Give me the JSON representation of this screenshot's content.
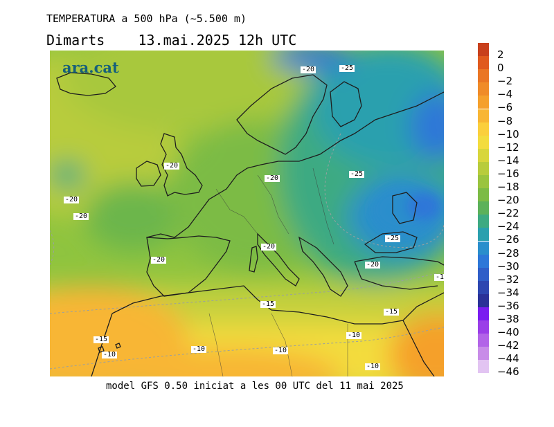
{
  "title": "TEMPERATURA a 500 hPa (~5.500 m)",
  "subtitle_day": "Dimarts",
  "subtitle_datetime": "13.mai.2025 12h UTC",
  "footer": "model GFS 0.50 iniciat a les 00 UTC del 11 mai 2025",
  "logo": "ara.cat",
  "contour_labels": [
    "-20",
    "-25",
    "-20",
    "-20",
    "-20",
    "-20",
    "-25",
    "-20",
    "-25",
    "-20",
    "-20",
    "-15",
    "-15",
    "-1",
    "-15",
    "-10",
    "-10",
    "-10",
    "-10",
    "-10"
  ],
  "legend": {
    "labels": [
      "2",
      "0",
      "−2",
      "−4",
      "−6",
      "−8",
      "−10",
      "−12",
      "−14",
      "−16",
      "−18",
      "−20",
      "−22",
      "−24",
      "−26",
      "−28",
      "−30",
      "−32",
      "−34",
      "−36",
      "−38",
      "−40",
      "−42",
      "−44",
      "−46"
    ],
    "colors": [
      "#c8401c",
      "#e05a1e",
      "#ea7624",
      "#f08b28",
      "#f5a02c",
      "#f8b634",
      "#fbcf3c",
      "#f3dc3e",
      "#d8d63c",
      "#b8cc3c",
      "#9ac43e",
      "#7cbb45",
      "#5cb15a",
      "#3daa82",
      "#2aa0ae",
      "#2a8ecc",
      "#2d77d8",
      "#2f5ec8",
      "#2d46b0",
      "#2a3198",
      "#7a1cf0",
      "#9a3ee8",
      "#b264e8",
      "#c88ce8",
      "#e2c4f2"
    ]
  }
}
